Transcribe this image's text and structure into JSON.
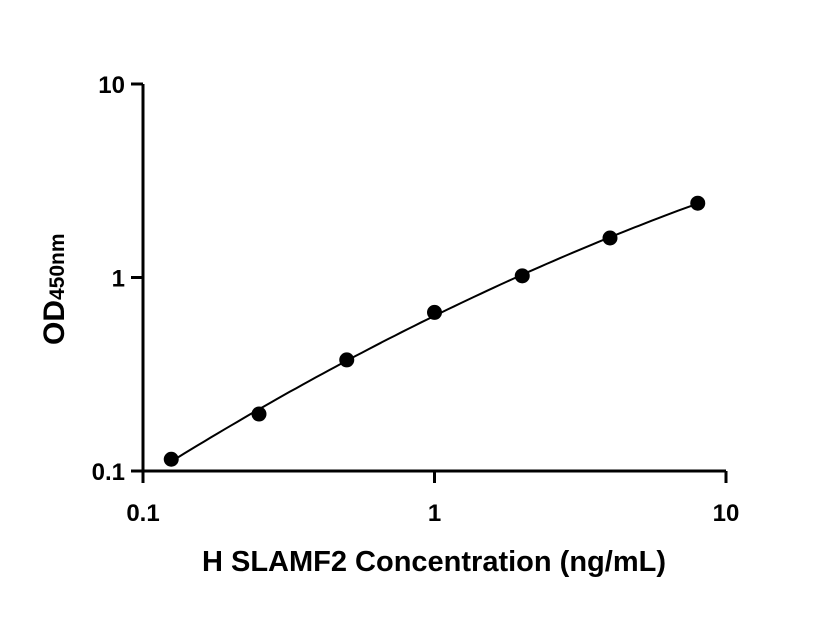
{
  "chart_data": {
    "type": "scatter",
    "scale": {
      "x": "log",
      "y": "log"
    },
    "xlim": [
      0.1,
      10
    ],
    "ylim": [
      0.1,
      10
    ],
    "xlabel": "H SLAMF2 Concentration (ng/mL)",
    "ylabel": {
      "main": "OD",
      "subscript": "450nm"
    },
    "x_ticks": [
      {
        "value": 0.1,
        "label": "0.1"
      },
      {
        "value": 1,
        "label": "1"
      },
      {
        "value": 10,
        "label": "10"
      }
    ],
    "y_ticks": [
      {
        "value": 0.1,
        "label": "0.1"
      },
      {
        "value": 1,
        "label": "1"
      },
      {
        "value": 10,
        "label": "10"
      }
    ],
    "grid": false,
    "series": [
      {
        "x": [
          0.125,
          0.25,
          0.5,
          1,
          2,
          4,
          8
        ],
        "y": [
          0.115,
          0.197,
          0.375,
          0.66,
          1.02,
          1.6,
          2.42
        ],
        "marker": "circle",
        "fit_curve": true,
        "color": "#000000"
      }
    ]
  }
}
